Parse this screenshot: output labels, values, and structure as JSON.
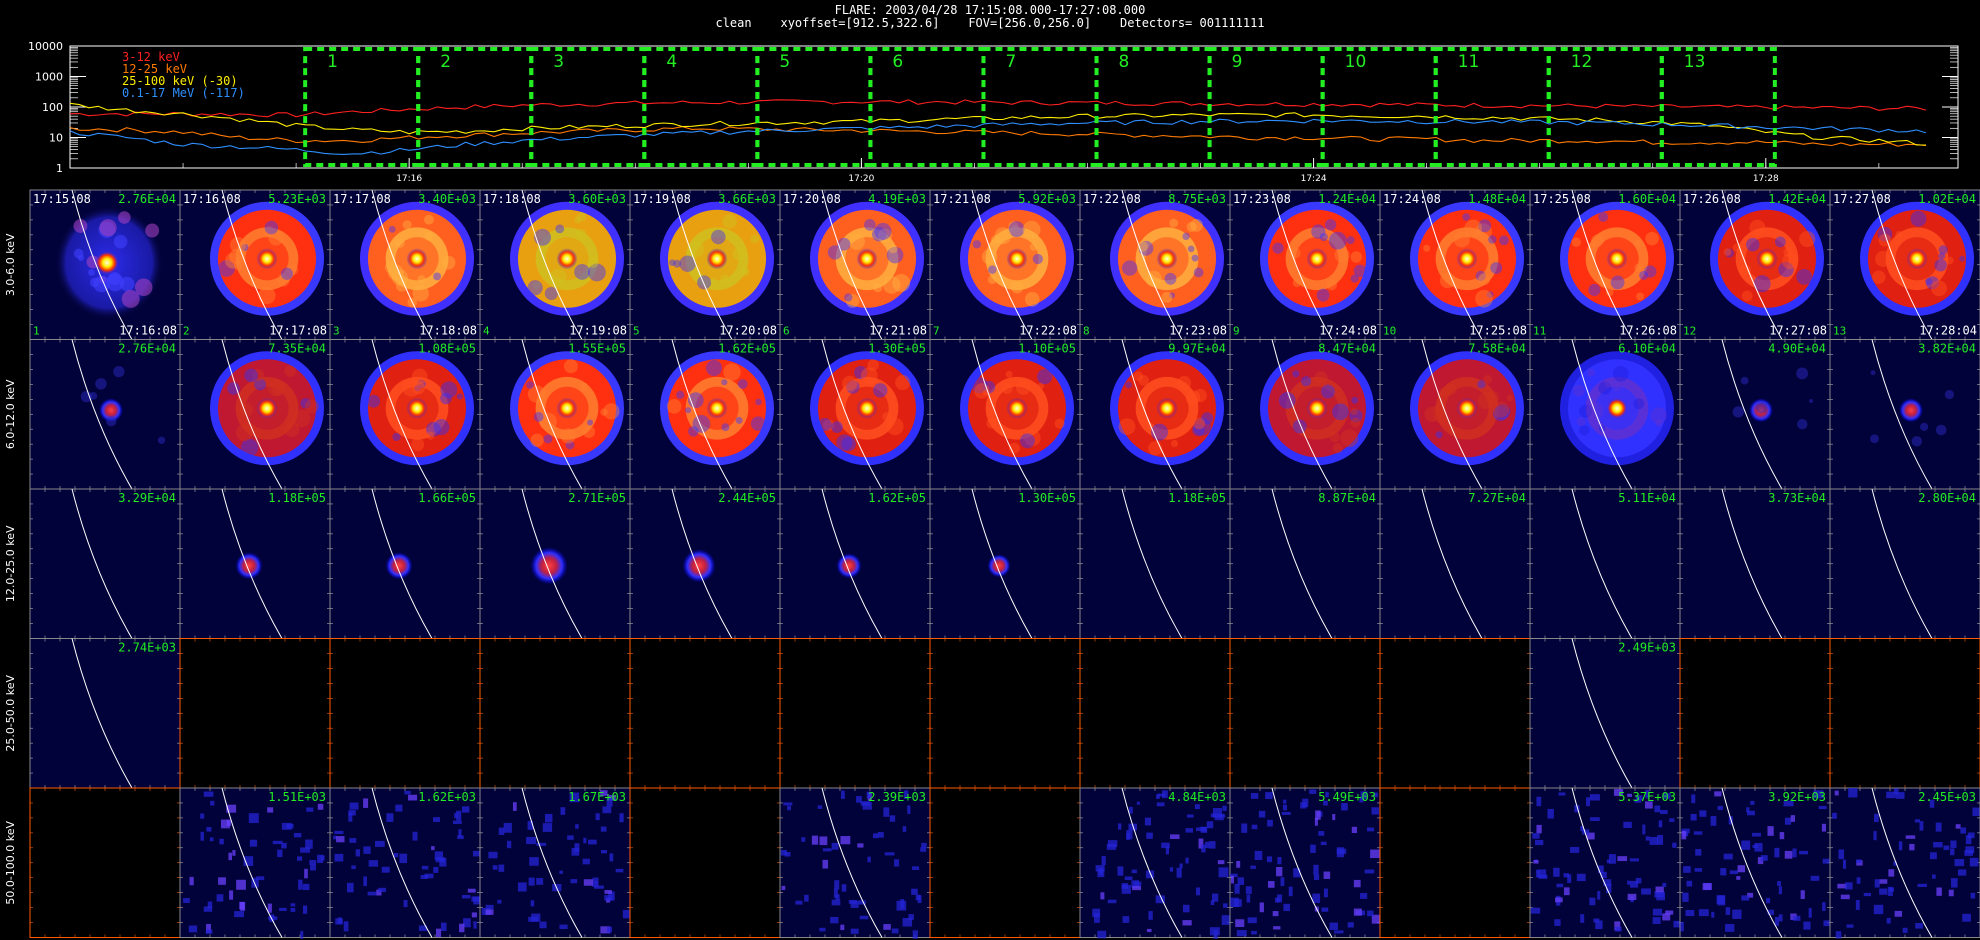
{
  "header": {
    "line1": "FLARE: 2003/04/28 17:15:08.000-17:27:08.000",
    "line2": "clean    xyoffset=[912.5,322.6]    FOV=[256.0,256.0]    Detectors= 001111111"
  },
  "colors": {
    "background": "#000000",
    "panel_bg": "#02023a",
    "box": "#22ee22",
    "label_green": "#22ee22",
    "limb": "#ffffff",
    "orange_axis": "#ff5a00",
    "series_3_12": "#ff2020",
    "series_12_25": "#ff7a00",
    "series_25_100": "#ffee00",
    "series_01_17": "#2f8fff"
  },
  "chart_data": [
    {
      "type": "line",
      "title": "",
      "ylabel": "",
      "xlabel": "",
      "yscale": "log",
      "ylim": [
        1,
        10000
      ],
      "yticks": [
        "10000",
        "1000",
        "100",
        "10",
        "1"
      ],
      "xticks": [
        "17:16",
        "17:20",
        "17:24",
        "17:28"
      ],
      "legend_position": "top-left",
      "x_minutes_from_17_00": [
        13,
        13.5,
        14,
        14.5,
        15,
        15.5,
        16,
        16.5,
        17,
        17.5,
        18,
        18.5,
        19,
        19.5,
        20,
        20.5,
        21,
        21.5,
        22,
        22.5,
        23,
        23.5,
        24,
        24.5,
        25,
        25.5,
        26,
        26.5,
        27,
        27.5,
        28,
        28.5,
        29,
        29.5
      ],
      "series": [
        {
          "name": "3-12 keV",
          "color": "#ff2020",
          "values": [
            60,
            60,
            60,
            58,
            55,
            70,
            85,
            100,
            115,
            125,
            135,
            140,
            145,
            150,
            150,
            148,
            145,
            140,
            138,
            135,
            130,
            128,
            125,
            122,
            118,
            115,
            112,
            108,
            105,
            100,
            98,
            95,
            92,
            90
          ]
        },
        {
          "name": "12-25 keV",
          "color": "#ff7a00",
          "values": [
            20,
            18,
            15,
            10,
            8,
            8,
            10,
            12,
            14,
            16,
            18,
            20,
            19,
            18,
            17,
            16,
            15,
            14,
            13,
            12,
            11,
            10,
            10,
            9,
            9,
            8,
            8,
            8,
            7,
            7,
            7,
            6,
            6,
            6
          ]
        },
        {
          "name": "25-100 keV (-30)",
          "color": "#ffee00",
          "values": [
            120,
            80,
            60,
            40,
            25,
            18,
            15,
            16,
            20,
            22,
            25,
            28,
            30,
            32,
            34,
            38,
            42,
            46,
            50,
            52,
            55,
            55,
            55,
            52,
            50,
            46,
            42,
            38,
            32,
            25,
            15,
            10,
            8,
            6
          ]
        },
        {
          "name": "0.1-17 MeV (-117)",
          "color": "#2f8fff",
          "values": [
            15,
            10,
            6,
            5,
            4,
            3,
            4,
            6,
            8,
            10,
            12,
            14,
            16,
            18,
            20,
            22,
            25,
            28,
            30,
            32,
            34,
            35,
            36,
            35,
            34,
            33,
            32,
            30,
            28,
            25,
            22,
            20,
            18,
            16
          ]
        }
      ],
      "intervals": [
        "1",
        "2",
        "3",
        "4",
        "5",
        "6",
        "7",
        "8",
        "9",
        "10",
        "11",
        "12",
        "13"
      ],
      "interval_start_minutes": [
        15.08,
        16.08,
        17.08,
        18.08,
        19.08,
        20.08,
        21.08,
        22.08,
        23.08,
        24.08,
        25.08,
        26.08,
        27.08
      ],
      "interval_end_minute": 28.08
    },
    {
      "type": "heatmap",
      "title": "",
      "columns": 13,
      "row_labels": [
        "3.0-6.0 keV",
        "6.0-12.0 keV",
        "12.0-25.0 keV",
        "25.0-50.0 keV",
        "50.0-100.0 keV"
      ],
      "start_times": [
        "17:15:08",
        "17:16:08",
        "17:17:08",
        "17:18:08",
        "17:19:08",
        "17:20:08",
        "17:21:08",
        "17:22:08",
        "17:23:08",
        "17:24:08",
        "17:25:08",
        "17:26:08",
        "17:27:08"
      ],
      "end_times": [
        "17:16:08",
        "17:17:08",
        "17:18:08",
        "17:19:08",
        "17:20:08",
        "17:21:08",
        "17:22:08",
        "17:23:08",
        "17:24:08",
        "17:25:08",
        "17:26:08",
        "17:27:08",
        "17:28:04"
      ],
      "row_peaks": [
        [
          "2.76E+04",
          "5.23E+03",
          "3.40E+03",
          "3.60E+03",
          "3.66E+03",
          "4.19E+03",
          "5.92E+03",
          "8.75E+03",
          "1.24E+04",
          "1.48E+04",
          "1.60E+04",
          "1.42E+04",
          "1.02E+04"
        ],
        [
          "2.76E+04",
          "7.35E+04",
          "1.08E+05",
          "1.55E+05",
          "1.62E+05",
          "1.30E+05",
          "1.10E+05",
          "9.97E+04",
          "8.47E+04",
          "7.58E+04",
          "6.10E+04",
          "4.90E+04",
          "3.82E+04"
        ],
        [
          "3.29E+04",
          "1.18E+05",
          "1.66E+05",
          "2.71E+05",
          "2.44E+05",
          "1.62E+05",
          "1.30E+05",
          "1.18E+05",
          "8.87E+04",
          "7.27E+04",
          "5.11E+04",
          "3.73E+04",
          "2.80E+04"
        ],
        [
          "2.74E+03",
          "",
          "",
          "",
          "",
          "",
          "",
          "",
          "",
          "",
          "2.49E+03",
          "",
          ""
        ],
        [
          "",
          "1.51E+03",
          "1.62E+03",
          "1.67E+03",
          "",
          "2.39E+03",
          "",
          "4.84E+03",
          "5.49E+03",
          "",
          "5.37E+03",
          "3.92E+03",
          "2.45E+03"
        ]
      ],
      "panel_kind": [
        [
          "blob",
          "ring",
          "ring",
          "ring",
          "ring",
          "ring",
          "ring",
          "ring",
          "ring",
          "ring",
          "ring",
          "ring",
          "ring"
        ],
        [
          "core",
          "ring",
          "ring",
          "ring",
          "ring",
          "ring",
          "ring",
          "ring",
          "ring",
          "ring",
          "ring",
          "core",
          "core"
        ],
        [
          "limb",
          "core",
          "core",
          "core",
          "core",
          "core",
          "core",
          "limb",
          "limb",
          "limb",
          "limb",
          "limb",
          "limb"
        ],
        [
          "limb",
          "empty",
          "empty",
          "empty",
          "empty",
          "empty",
          "empty",
          "empty",
          "empty",
          "empty",
          "limb",
          "empty",
          "empty"
        ],
        [
          "empty",
          "noise",
          "noise",
          "noise",
          "empty",
          "noise",
          "empty",
          "noise",
          "noise",
          "empty",
          "noise",
          "noise",
          "noise"
        ]
      ],
      "ring_intensity": [
        [
          0.4,
          0.55,
          0.75,
          0.95,
          1.0,
          0.85,
          0.8,
          0.72,
          0.66,
          0.6,
          0.52,
          0.45,
          0.38
        ],
        [
          0.2,
          0.35,
          0.5,
          0.62,
          0.62,
          0.5,
          0.42,
          0.38,
          0.3,
          0.22,
          0.16,
          0.12,
          0.1
        ],
        [
          0.05,
          0.3,
          0.3,
          0.55,
          0.45,
          0.25,
          0.2,
          0.05,
          0.05,
          0.05,
          0.05,
          0.05,
          0.05
        ],
        [
          0,
          0,
          0,
          0,
          0,
          0,
          0,
          0,
          0,
          0,
          0,
          0,
          0
        ],
        [
          0.3,
          0.3,
          0.3,
          0.3,
          0.3,
          0.3,
          0.3,
          0.5,
          0.6,
          0.3,
          0.6,
          0.5,
          0.35
        ]
      ]
    }
  ]
}
